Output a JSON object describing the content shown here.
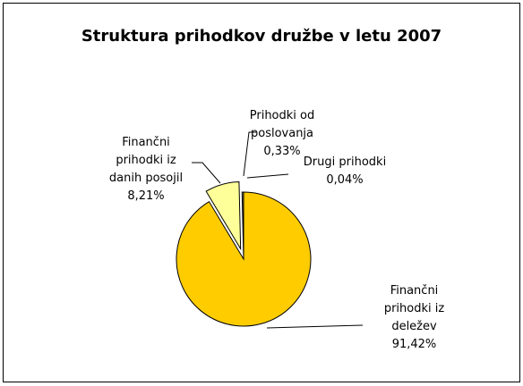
{
  "chart_data": {
    "type": "pie",
    "title": "Struktura prihodkov družbe v letu 2007",
    "categories": [
      "Finančni prihodki iz deležev",
      "Finančni prihodki iz danih posojil",
      "Prihodki od poslovanja",
      "Drugi prihodki"
    ],
    "values": [
      91.42,
      8.21,
      0.33,
      0.04
    ],
    "value_labels": [
      "91,42%",
      "8,21%",
      "0,33%",
      "0,04%"
    ],
    "colors": [
      "#FFCC00",
      "#FFFF99",
      "#FFFFCC",
      "#333333"
    ]
  }
}
